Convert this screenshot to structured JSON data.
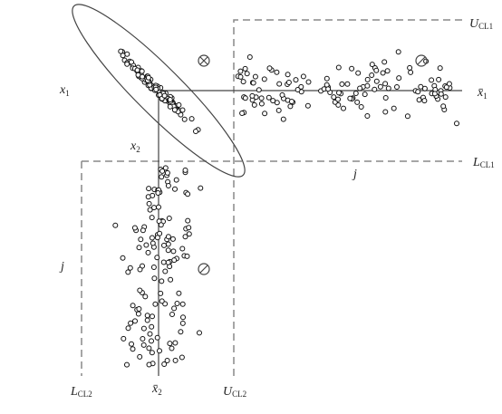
{
  "labels": {
    "x1": {
      "text": "x",
      "sub": "1"
    },
    "x1_mean": {
      "text": "x̄",
      "sub": "1"
    },
    "x2": {
      "text": "x",
      "sub": "2"
    },
    "x2_mean": {
      "text": "x̄",
      "sub": "2"
    },
    "ucl1": {
      "text": "U",
      "sub": "CL1"
    },
    "lcl1": {
      "text": "L",
      "sub": "CL1"
    },
    "ucl2": {
      "text": "U",
      "sub": "CL2"
    },
    "lcl2": {
      "text": "L",
      "sub": "CL2"
    },
    "j_right": {
      "text": "j"
    },
    "j_bottom": {
      "text": "j"
    }
  }
}
